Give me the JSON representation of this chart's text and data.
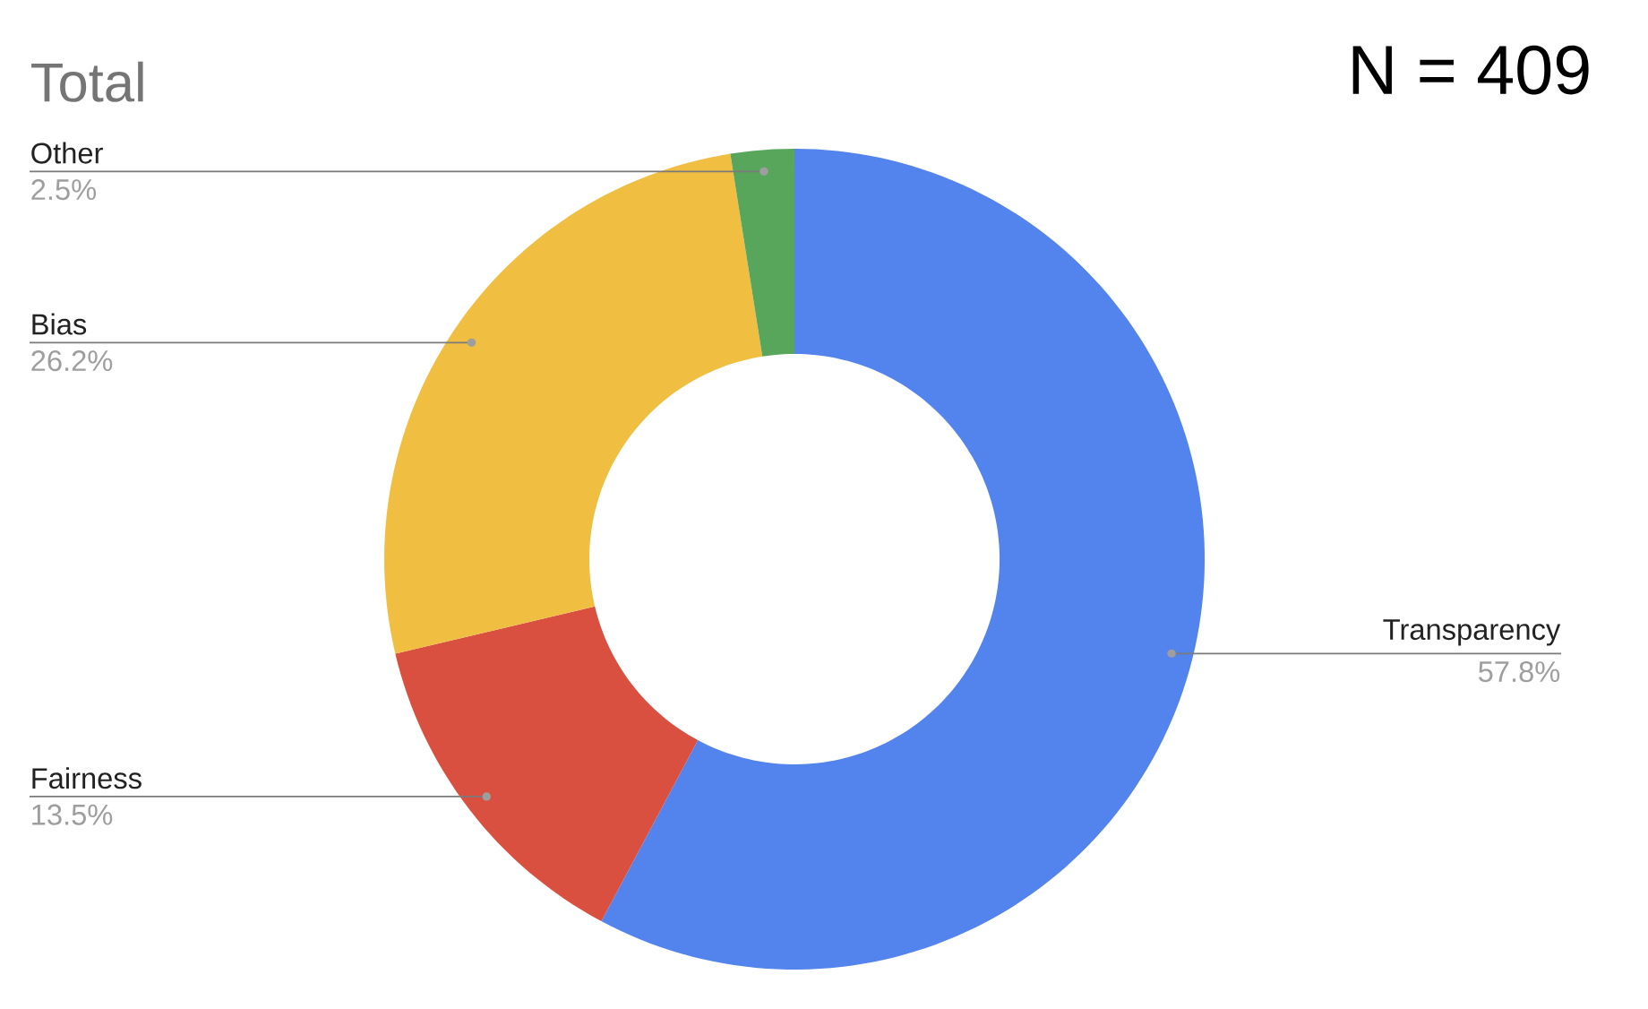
{
  "chart_data": {
    "type": "donut",
    "title": "Total",
    "categories": [
      "Transparency",
      "Fairness",
      "Bias",
      "Other"
    ],
    "values": [
      57.8,
      13.5,
      26.2,
      2.5
    ],
    "value_labels": [
      "57.8%",
      "13.5%",
      "26.2%",
      "2.5%"
    ],
    "colors": [
      "#5383ec",
      "#d95040",
      "#f0bf42",
      "#58a65c"
    ],
    "annotations": [
      "N = 409"
    ]
  }
}
